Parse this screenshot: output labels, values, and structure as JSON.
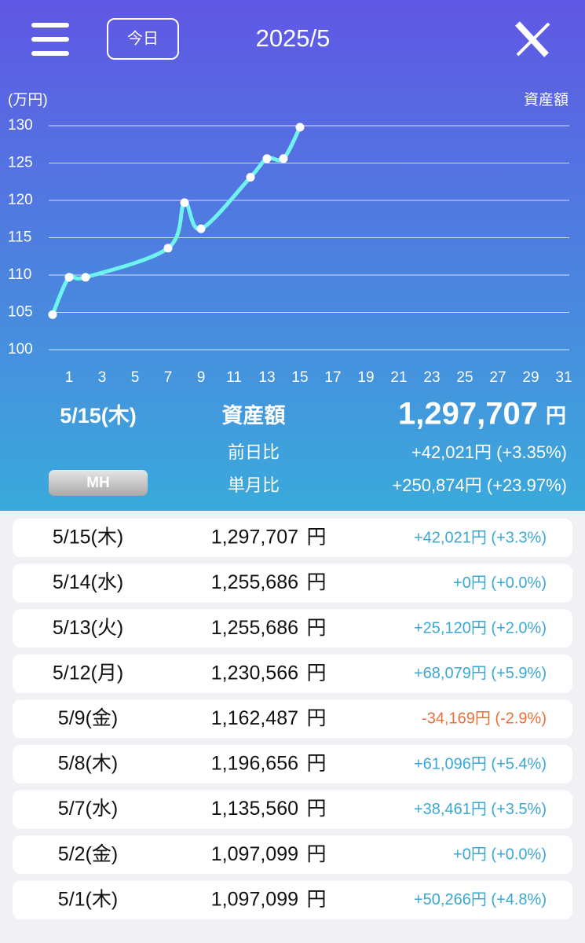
{
  "header": {
    "today_button": "今日",
    "title": "2025/5"
  },
  "chart": {
    "type": "line",
    "y_label": "(万円)",
    "series_name": "資産額",
    "color": "#6ff3ef",
    "x": [
      0,
      1,
      2,
      7,
      8,
      9,
      12,
      13,
      14,
      15
    ],
    "values": [
      104.7,
      109.7,
      109.7,
      113.6,
      119.7,
      116.2,
      123.1,
      125.6,
      125.6,
      129.8
    ],
    "xlim": [
      0,
      31
    ],
    "xticks": [
      1,
      3,
      5,
      7,
      9,
      11,
      13,
      15,
      17,
      19,
      21,
      23,
      25,
      27,
      29,
      31
    ],
    "ylim": [
      100,
      130
    ],
    "yticks": [
      100,
      105,
      110,
      115,
      120,
      125,
      130
    ],
    "grid": true
  },
  "summary": {
    "date": "5/15(木)",
    "label": "資産額",
    "amount": "1,297,707",
    "unit": "円",
    "rows": [
      {
        "label": "前日比",
        "value": "+42,021円 (+3.35%)"
      },
      {
        "label": "単月比",
        "value": "+250,874円 (+23.97%)"
      }
    ],
    "button": "MH"
  },
  "list": {
    "rows": [
      [
        "5/15(木)",
        "1,297,707",
        "円",
        "+42,021円 (+3.3%)"
      ],
      [
        "5/14(水)",
        "1,255,686",
        "円",
        "+0円 (+0.0%)"
      ],
      [
        "5/13(火)",
        "1,255,686",
        "円",
        "+25,120円 (+2.0%)"
      ],
      [
        "5/12(月)",
        "1,230,566",
        "円",
        "+68,079円 (+5.9%)"
      ],
      [
        "5/9(金)",
        "1,162,487",
        "円",
        "-34,169円 (-2.9%)"
      ],
      [
        "5/8(木)",
        "1,196,656",
        "円",
        "+61,096円 (+5.4%)"
      ],
      [
        "5/7(水)",
        "1,135,560",
        "円",
        "+38,461円 (+3.5%)"
      ],
      [
        "5/2(金)",
        "1,097,099",
        "円",
        "+0円 (+0.0%)"
      ],
      [
        "5/1(木)",
        "1,097,099",
        "円",
        "+50,266円 (+4.8%)"
      ]
    ]
  }
}
